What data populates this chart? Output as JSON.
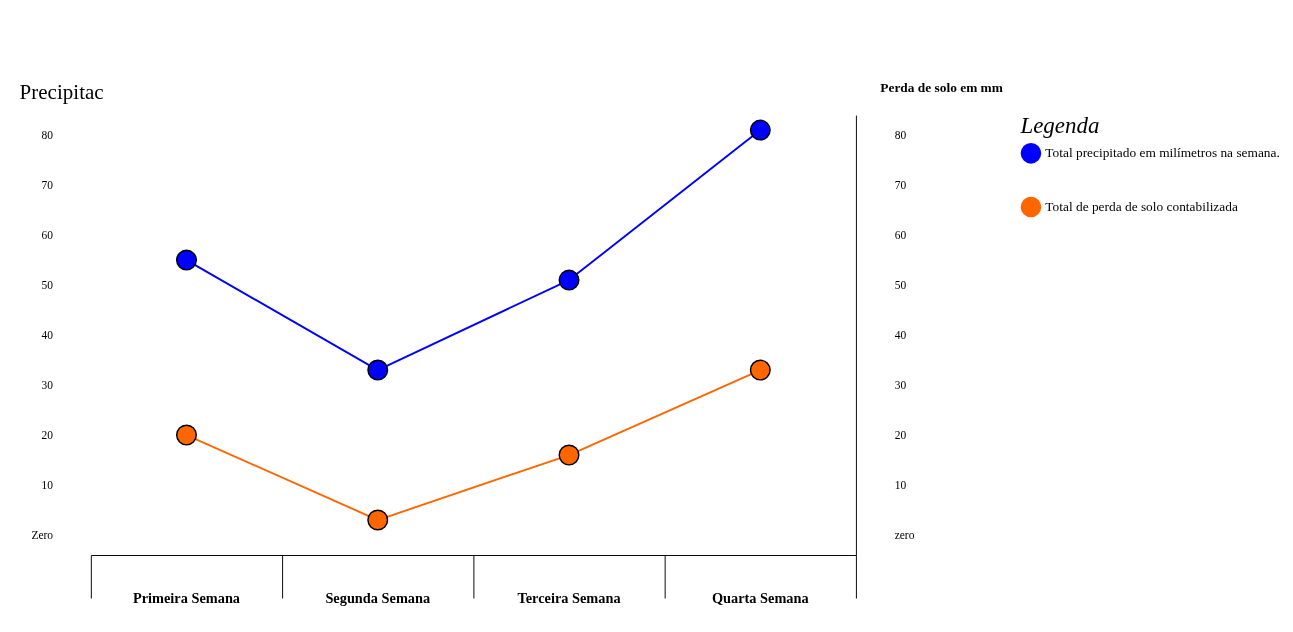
{
  "chart_data": {
    "type": "line",
    "ylabel": "Precipitac",
    "y2label": "Perda de solo em mm",
    "legend_title": "Legenda",
    "legend": "right",
    "marker": "circle",
    "line_style": "solid",
    "grid": false,
    "categories": [
      "Primeira Semana",
      "Segunda Semana",
      "Terceira Semana",
      "Quarta Semana"
    ],
    "series": [
      {
        "name": "Total precipitado em milímetros  na semana.",
        "color": "#0000ff",
        "values": [
          55,
          33,
          51,
          81
        ]
      },
      {
        "name": "Total de perda de solo contabilizada",
        "color": "#ff6600",
        "values": [
          20,
          3,
          16,
          33
        ],
        "axis": "y2"
      }
    ],
    "ylim": [
      -4,
      84
    ],
    "yticks": [
      {
        "value": 0,
        "label": "Zero"
      },
      10,
      20,
      30,
      40,
      50,
      60,
      70,
      80
    ],
    "y2lim": [
      -4,
      84
    ],
    "y2ticks": [
      {
        "value": 0,
        "label": "zero"
      },
      10,
      20,
      30,
      40,
      50,
      60,
      70,
      80
    ]
  }
}
